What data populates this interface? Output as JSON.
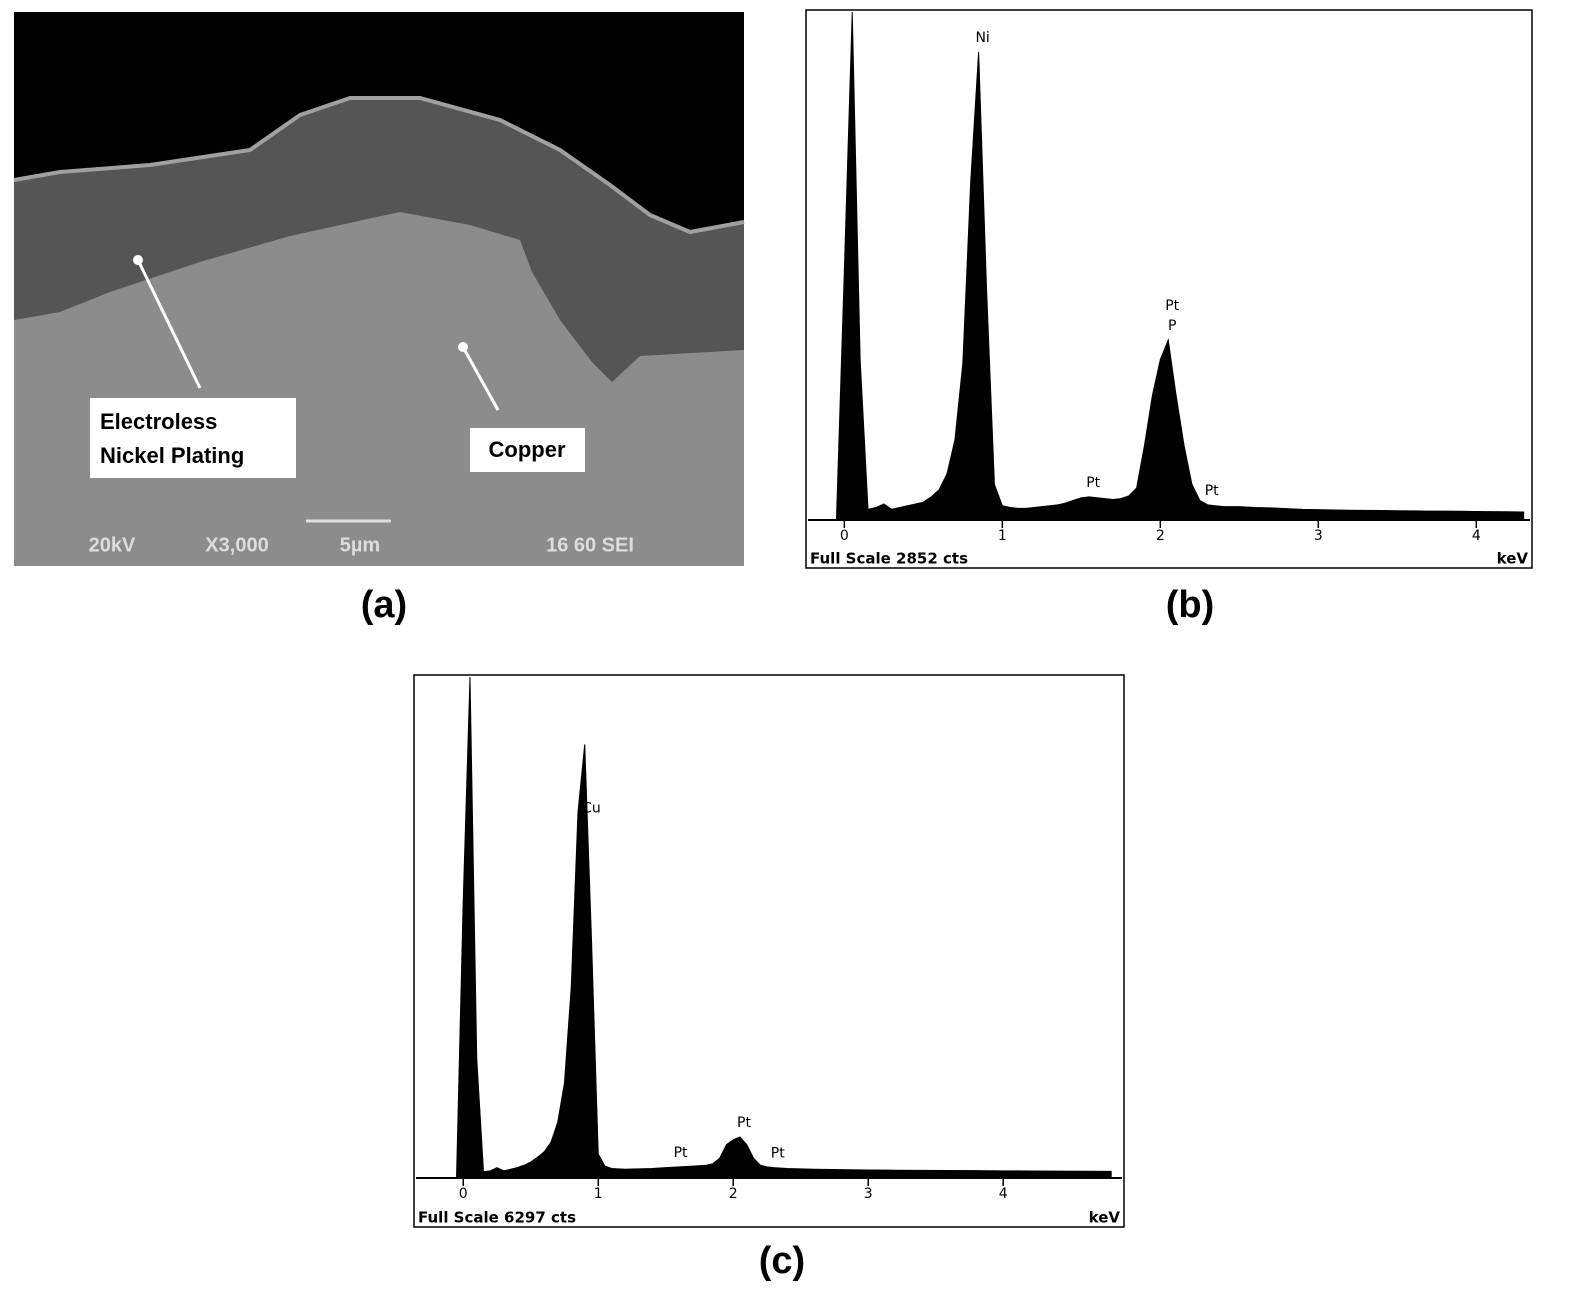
{
  "sem_image": {
    "panel_label": "(a)",
    "callouts": [
      "Electroless",
      "Nickel Plating",
      "Copper"
    ],
    "info_bar": [
      "20kV",
      "X3,000",
      "5µm",
      "16 60 SEI"
    ]
  },
  "chart_data": [
    {
      "type": "area",
      "panel_label": "(b)",
      "full_scale_label": "Full Scale 2852 cts",
      "x_unit_label": "keV",
      "color": "#000000",
      "xlim": [
        -0.23,
        4.34
      ],
      "ylim": [
        0,
        2852
      ],
      "xticks": [
        0,
        1,
        2,
        3,
        4
      ],
      "x": [
        -0.1,
        -0.05,
        0,
        0.05,
        0.1,
        0.15,
        0.2,
        0.25,
        0.3,
        0.35,
        0.4,
        0.45,
        0.5,
        0.55,
        0.6,
        0.65,
        0.7,
        0.75,
        0.8,
        0.85,
        0.9,
        0.95,
        1.0,
        1.05,
        1.1,
        1.15,
        1.2,
        1.25,
        1.3,
        1.35,
        1.4,
        1.45,
        1.5,
        1.55,
        1.6,
        1.65,
        1.7,
        1.75,
        1.8,
        1.85,
        1.9,
        1.95,
        2.0,
        2.05,
        2.1,
        2.15,
        2.2,
        2.25,
        2.3,
        2.35,
        2.4,
        2.45,
        2.5,
        2.6,
        2.7,
        2.8,
        2.9,
        3.0,
        3.1,
        3.2,
        3.3,
        3.4,
        3.5,
        3.6,
        3.7,
        3.8,
        3.9,
        4.0,
        4.1,
        4.2,
        4.3
      ],
      "values": [
        0,
        0,
        1400,
        2852,
        900,
        60,
        70,
        90,
        60,
        70,
        80,
        90,
        100,
        130,
        170,
        260,
        450,
        880,
        1900,
        2628,
        1300,
        200,
        80,
        70,
        65,
        65,
        70,
        75,
        80,
        85,
        95,
        110,
        125,
        130,
        125,
        120,
        115,
        120,
        135,
        180,
        420,
        700,
        900,
        1010,
        700,
        420,
        200,
        110,
        85,
        80,
        75,
        75,
        75,
        70,
        68,
        64,
        60,
        58,
        56,
        55,
        54,
        53,
        52,
        51,
        50,
        50,
        49,
        48,
        47,
        46,
        45
      ],
      "annotations": [
        {
          "text": "Ni",
          "x": 0.85
        },
        {
          "text": "P",
          "x": 2.05
        },
        {
          "text": "Pt",
          "x": 2.05
        },
        {
          "text": "Pt",
          "x": 1.55
        },
        {
          "text": "Pt",
          "x": 2.3
        }
      ]
    },
    {
      "type": "area",
      "panel_label": "(c)",
      "full_scale_label": "Full Scale 6297 cts",
      "x_unit_label": "keV",
      "color": "#000000",
      "xlim": [
        -0.35,
        4.88
      ],
      "ylim": [
        0,
        6297
      ],
      "xticks": [
        0,
        1,
        2,
        3,
        4
      ],
      "x": [
        -0.1,
        -0.05,
        0,
        0.05,
        0.1,
        0.15,
        0.2,
        0.25,
        0.3,
        0.35,
        0.4,
        0.45,
        0.5,
        0.55,
        0.6,
        0.65,
        0.7,
        0.75,
        0.8,
        0.85,
        0.9,
        0.95,
        1.0,
        1.05,
        1.1,
        1.2,
        1.3,
        1.4,
        1.5,
        1.6,
        1.7,
        1.8,
        1.85,
        1.9,
        1.95,
        2.0,
        2.05,
        2.1,
        2.15,
        2.2,
        2.25,
        2.3,
        2.4,
        2.5,
        2.6,
        2.8,
        3.0,
        3.2,
        3.4,
        3.6,
        3.8,
        4.0,
        4.2,
        4.4,
        4.6,
        4.8
      ],
      "values": [
        0,
        0,
        3500,
        6297,
        1500,
        80,
        90,
        130,
        90,
        110,
        130,
        160,
        200,
        260,
        330,
        450,
        700,
        1200,
        2400,
        4600,
        5450,
        3000,
        300,
        150,
        120,
        110,
        115,
        120,
        130,
        140,
        150,
        160,
        180,
        250,
        420,
        480,
        515,
        420,
        250,
        160,
        140,
        130,
        120,
        115,
        110,
        105,
        100,
        98,
        96,
        94,
        92,
        90,
        88,
        86,
        85,
        84
      ],
      "annotations": [
        {
          "text": "Cu",
          "x": 0.92
        },
        {
          "text": "Pt",
          "x": 2.05
        },
        {
          "text": "Pt",
          "x": 1.58
        },
        {
          "text": "Pt",
          "x": 2.3
        }
      ]
    }
  ]
}
